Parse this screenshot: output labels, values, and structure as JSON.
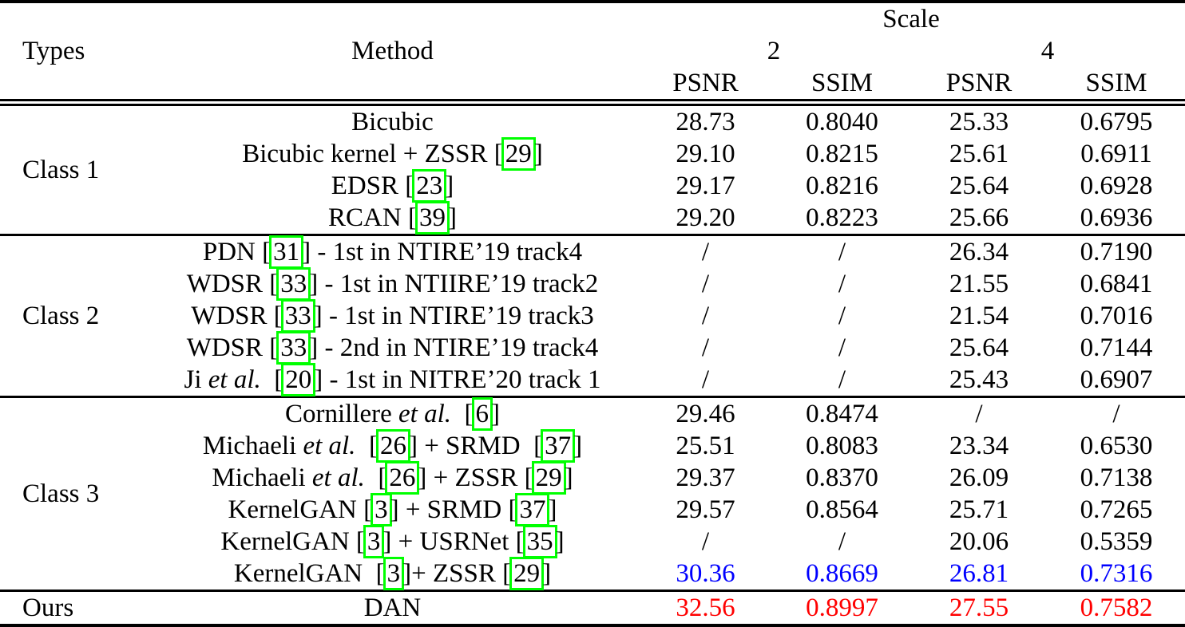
{
  "header": {
    "types": "Types",
    "method": "Method",
    "scale": "Scale",
    "scale_2": "2",
    "scale_4": "4",
    "metrics": [
      "PSNR",
      "SSIM",
      "PSNR",
      "SSIM"
    ]
  },
  "colors": {
    "best": "#ff0000",
    "second_best": "#0000ff",
    "citation_box": "#00ff00",
    "text": "#000000"
  },
  "groups": [
    {
      "type": "Class 1",
      "rows": [
        {
          "method": "Bicubic",
          "values": [
            "28.73",
            "0.8040",
            "25.33",
            "0.6795"
          ]
        },
        {
          "method": "Bicubic kernel + ZSSR [[29]]",
          "values": [
            "29.10",
            "0.8215",
            "25.61",
            "0.6911"
          ]
        },
        {
          "method": "EDSR [[23]]",
          "values": [
            "29.17",
            "0.8216",
            "25.64",
            "0.6928"
          ]
        },
        {
          "method": "RCAN [[39]]",
          "values": [
            "29.20",
            "0.8223",
            "25.66",
            "0.6936"
          ]
        }
      ]
    },
    {
      "type": "Class 2",
      "rows": [
        {
          "method": "PDN [[31]] - 1st in NTIRE’19 track4",
          "values": [
            "/",
            "/",
            "26.34",
            "0.7190"
          ]
        },
        {
          "method": "WDSR [[33]] - 1st in NTIIRE’19 track2",
          "values": [
            "/",
            "/",
            "21.55",
            "0.6841"
          ]
        },
        {
          "method": "WDSR [[33]] - 1st in NTIRE’19 track3",
          "values": [
            "/",
            "/",
            "21.54",
            "0.7016"
          ]
        },
        {
          "method": "WDSR [[33]] - 2nd in NTIRE’19 track4",
          "values": [
            "/",
            "/",
            "25.64",
            "0.7144"
          ]
        },
        {
          "method": "Ji *et al.*  [[20]] - 1st in NITRE’20 track 1",
          "values": [
            "/",
            "/",
            "25.43",
            "0.6907"
          ]
        }
      ]
    },
    {
      "type": "Class 3",
      "rows": [
        {
          "method": "Cornillere *et al.*  [[6]]",
          "values": [
            "29.46",
            "0.8474",
            "/",
            "/"
          ]
        },
        {
          "method": "Michaeli *et al.*  [[26]] + SRMD  [[37]]",
          "values": [
            "25.51",
            "0.8083",
            "23.34",
            "0.6530"
          ]
        },
        {
          "method": "Michaeli *et al.*  [[26]] + ZSSR [[29]]",
          "values": [
            "29.37",
            "0.8370",
            "26.09",
            "0.7138"
          ]
        },
        {
          "method": "KernelGAN [[3]] + SRMD [[37]]",
          "values": [
            "29.57",
            "0.8564",
            "25.71",
            "0.7265"
          ]
        },
        {
          "method": "KernelGAN [[3]] + USRNet [[35]]",
          "values": [
            "/",
            "/",
            "20.06",
            "0.5359"
          ]
        },
        {
          "method": "KernelGAN  [[3]]+ ZSSR [[29]]",
          "values": [
            "30.36",
            "0.8669",
            "26.81",
            "0.7316"
          ],
          "values_color": "#0000ff"
        }
      ]
    },
    {
      "type": "Ours",
      "rows": [
        {
          "method": "DAN",
          "values": [
            "32.56",
            "0.8997",
            "27.55",
            "0.7582"
          ],
          "values_color": "#ff0000"
        }
      ]
    }
  ]
}
